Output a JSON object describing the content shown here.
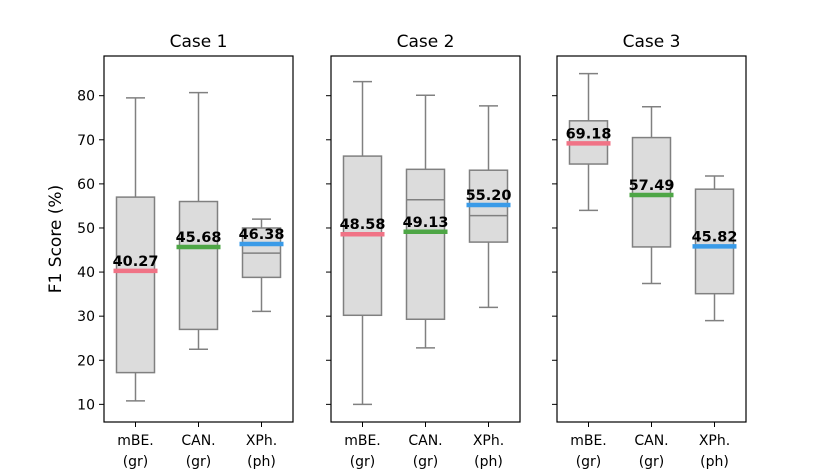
{
  "chart_data": {
    "type": "box",
    "ylabel": "F1 Score (%)",
    "ylim": [
      6,
      89
    ],
    "yticks": [
      10,
      20,
      30,
      40,
      50,
      60,
      70,
      80
    ],
    "category_colors": [
      "#f07386",
      "#4ea646",
      "#3a9be8"
    ],
    "panels": [
      {
        "title": "Case 1",
        "categories": [
          {
            "line1": "mBE.",
            "line2": "(gr)",
            "whislo": 10.8,
            "q1": 17.2,
            "med": 40.3,
            "q3": 57.0,
            "whishi": 79.5,
            "mean": 40.27,
            "mean_label": "40.27"
          },
          {
            "line1": "CAN.",
            "line2": "(gr)",
            "whislo": 22.5,
            "q1": 27.0,
            "med": 45.7,
            "q3": 56.0,
            "whishi": 80.7,
            "mean": 45.68,
            "mean_label": "45.68"
          },
          {
            "line1": "XPh.",
            "line2": "(ph)",
            "whislo": 31.1,
            "q1": 38.8,
            "med": 44.3,
            "q3": 50.0,
            "whishi": 52.0,
            "mean": 46.38,
            "mean_label": "46.38"
          }
        ]
      },
      {
        "title": "Case 2",
        "categories": [
          {
            "line1": "mBE.",
            "line2": "(gr)",
            "whislo": 10.0,
            "q1": 30.2,
            "med": 48.6,
            "q3": 66.3,
            "whishi": 83.2,
            "mean": 48.58,
            "mean_label": "48.58"
          },
          {
            "line1": "CAN.",
            "line2": "(gr)",
            "whislo": 22.8,
            "q1": 29.3,
            "med": 56.4,
            "q3": 63.3,
            "whishi": 80.1,
            "mean": 49.13,
            "mean_label": "49.13"
          },
          {
            "line1": "XPh.",
            "line2": "(ph)",
            "whislo": 32.0,
            "q1": 46.8,
            "med": 52.8,
            "q3": 63.1,
            "whishi": 77.7,
            "mean": 55.2,
            "mean_label": "55.20"
          }
        ]
      },
      {
        "title": "Case 3",
        "categories": [
          {
            "line1": "mBE.",
            "line2": "(gr)",
            "whislo": 54.0,
            "q1": 64.5,
            "med": 69.0,
            "q3": 74.3,
            "whishi": 85.0,
            "mean": 69.18,
            "mean_label": "69.18"
          },
          {
            "line1": "CAN.",
            "line2": "(gr)",
            "whislo": 37.4,
            "q1": 45.7,
            "med": 57.5,
            "q3": 70.5,
            "whishi": 77.5,
            "mean": 57.49,
            "mean_label": "57.49"
          },
          {
            "line1": "XPh.",
            "line2": "(ph)",
            "whislo": 29.0,
            "q1": 35.1,
            "med": 45.8,
            "q3": 58.8,
            "whishi": 61.8,
            "mean": 45.82,
            "mean_label": "45.82"
          }
        ]
      }
    ]
  }
}
